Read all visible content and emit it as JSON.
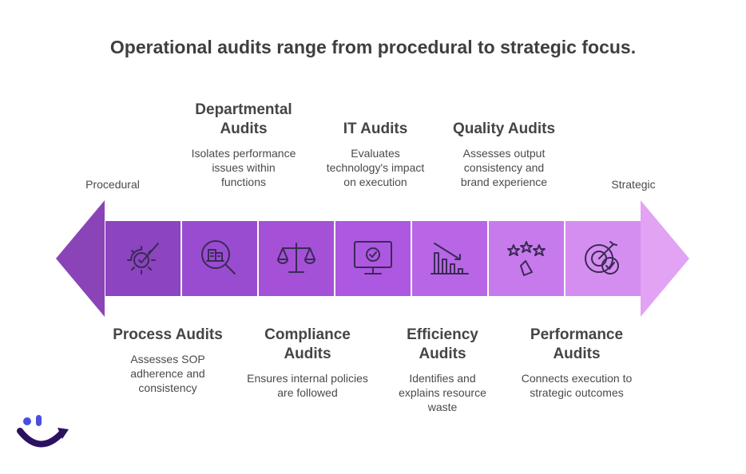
{
  "title": "Operational audits range from procedural to strategic focus.",
  "ends": {
    "left": "Procedural",
    "right": "Strategic"
  },
  "colors": {
    "left_arrow": "#8a44b8",
    "right_arrow": "#e2a3f4",
    "segments": [
      "#8c44c0",
      "#9a4cd0",
      "#a451d8",
      "#ad58e0",
      "#b866e6",
      "#c77aec",
      "#d48ef0"
    ]
  },
  "audits": [
    {
      "title": "Process Audits",
      "desc": "Assesses SOP adherence and consistency",
      "icon": "gear-check-icon"
    },
    {
      "title": "Departmental Audits",
      "desc": "Isolates performance issues within functions",
      "icon": "magnifier-building-icon"
    },
    {
      "title": "Compliance Audits",
      "desc": "Ensures internal policies are followed",
      "icon": "scales-icon"
    },
    {
      "title": "IT Audits",
      "desc": "Evaluates technology's impact on execution",
      "icon": "monitor-check-icon"
    },
    {
      "title": "Efficiency Audits",
      "desc": "Identifies and explains resource waste",
      "icon": "declining-chart-icon"
    },
    {
      "title": "Quality Audits",
      "desc": "Assesses output consistency and brand experience",
      "icon": "stars-rating-icon"
    },
    {
      "title": "Performance Audits",
      "desc": "Connects execution to strategic outcomes",
      "icon": "target-check-icon"
    }
  ]
}
